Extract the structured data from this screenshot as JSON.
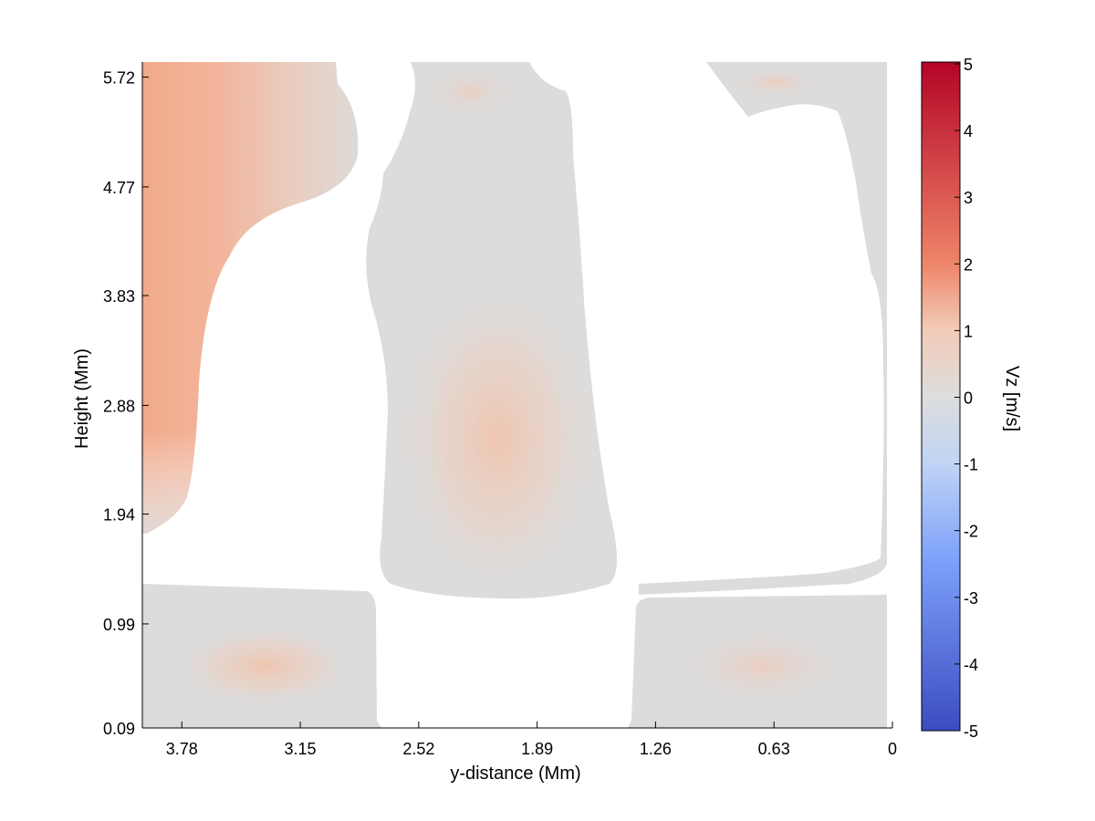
{
  "chart_data": {
    "type": "heatmap",
    "title": "",
    "xlabel": "y-distance (Mm)",
    "ylabel": "Height (Mm)",
    "x_reversed": true,
    "xlim": [
      3.99,
      0
    ],
    "ylim": [
      0.09,
      5.85
    ],
    "x_ticks": [
      "3.78",
      "3.15",
      "2.52",
      "1.89",
      "1.26",
      "0.63",
      "0"
    ],
    "y_ticks": [
      "0.09",
      "0.99",
      "1.94",
      "2.88",
      "3.83",
      "4.77",
      "5.72"
    ],
    "colorbar": {
      "label": "Vz [m/s]",
      "range": [
        -5,
        5
      ],
      "ticks": [
        "5",
        "4",
        "3",
        "2",
        "1",
        "0",
        "-1",
        "-2",
        "-3",
        "-4",
        "-5"
      ],
      "colormap": "coolwarm",
      "colors": [
        "#3b4cc0",
        "#7b9ff9",
        "#c0d4f5",
        "#dddddd",
        "#f2cbb7",
        "#ee8468",
        "#b40426"
      ]
    },
    "masked_color": "#ffffff",
    "regions": [
      {
        "name": "left column",
        "y_range": [
          3.55,
          3.99
        ],
        "z_range": [
          1.75,
          5.85
        ],
        "peak_vz": 1.7,
        "peak_at": [
          3.9,
          4.2
        ]
      },
      {
        "name": "central column",
        "y_range": [
          1.3,
          2.75
        ],
        "z_range": [
          1.3,
          5.85
        ],
        "peak_vz": 0.8,
        "peak_at": [
          1.98,
          2.3
        ]
      },
      {
        "name": "right column",
        "y_range": [
          0.0,
          0.6
        ],
        "z_range": [
          1.3,
          5.85
        ],
        "peak_vz": 0.2,
        "peak_at": [
          0.6,
          5.7
        ]
      },
      {
        "name": "bottom-left block",
        "y_range": [
          2.7,
          3.99
        ],
        "z_range": [
          0.09,
          1.35
        ],
        "peak_vz": 0.55,
        "peak_at": [
          3.15,
          0.6
        ]
      },
      {
        "name": "bottom-right block",
        "y_range": [
          0.0,
          1.38
        ],
        "z_range": [
          0.09,
          1.3
        ],
        "peak_vz": 0.45,
        "peak_at": [
          0.63,
          0.6
        ]
      }
    ]
  }
}
